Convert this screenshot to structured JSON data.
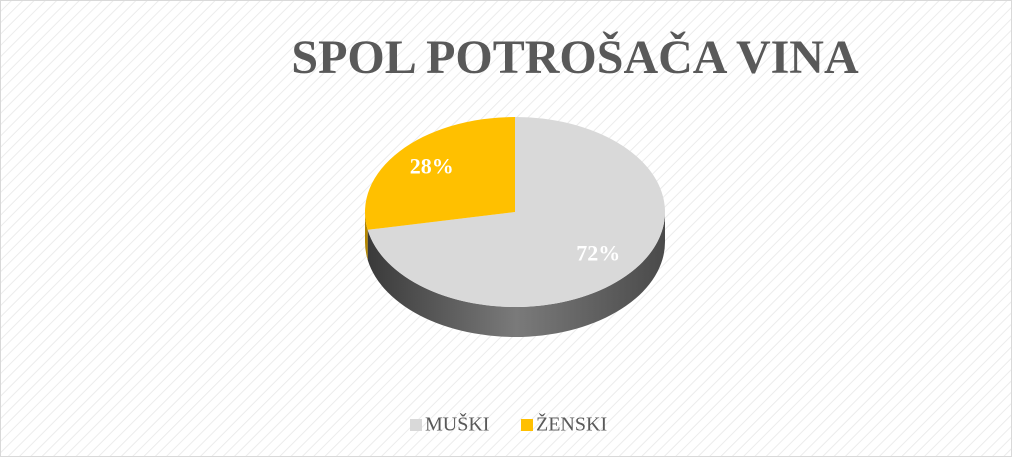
{
  "chart_data": {
    "type": "pie",
    "title": "SPOL POTROŠAČA VINA",
    "categories": [
      "MUŠKI",
      "ŽENSKI"
    ],
    "values": [
      72,
      28
    ],
    "value_labels": [
      "72%",
      "28%"
    ],
    "colors": [
      "#d9d9d9",
      "#ffc000"
    ],
    "legend": "bottom"
  }
}
